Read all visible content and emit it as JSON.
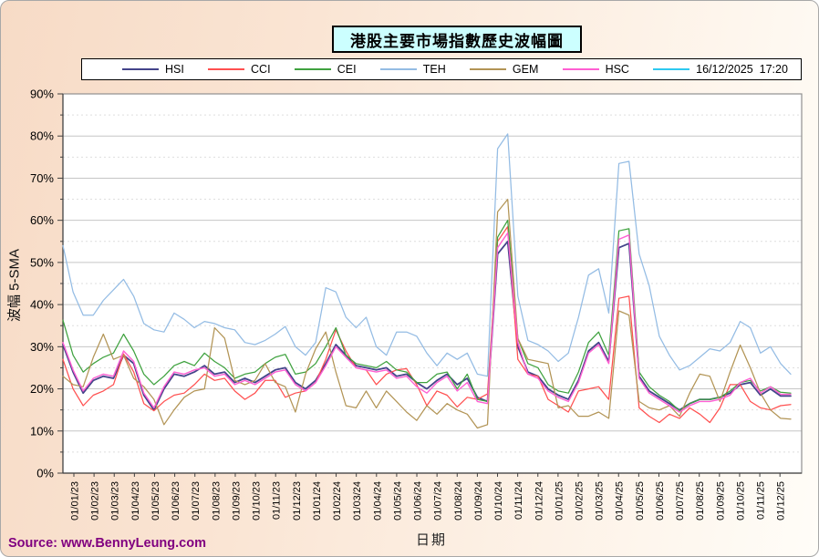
{
  "title": "港股主要市場指數歷史波幅圖",
  "source_text": "Source: www.BennyLeung.com",
  "colors": {
    "title_box_bg": "#CCFFFF",
    "source_text": "#800080",
    "page_bg_left": "#F7DBC6",
    "page_bg_right": "#FFFDF8",
    "plot_bg": "#FFFFFF",
    "grid_major": "#C6C6C6",
    "grid_minor": "#DEDEDE"
  },
  "chart_data": {
    "type": "line",
    "title": "港股主要市場指數歷史波幅圖",
    "xlabel": "日期",
    "ylabel": "波幅 5-SMA",
    "ylim": [
      0,
      90
    ],
    "y_tick_step": 10,
    "y_minor_step": 5,
    "grid": true,
    "legend_position": "top",
    "y_tick_labels": [
      "0%",
      "10%",
      "20%",
      "30%",
      "40%",
      "50%",
      "60%",
      "70%",
      "80%",
      "90%"
    ],
    "x_tick_labels": [
      "01/01/23",
      "01/02/23",
      "01/03/23",
      "01/04/23",
      "01/05/23",
      "01/06/23",
      "01/07/23",
      "01/08/23",
      "01/09/23",
      "01/10/23",
      "01/11/23",
      "01/12/23",
      "01/01/24",
      "01/02/24",
      "01/03/24",
      "01/04/24",
      "01/05/24",
      "01/06/24",
      "01/07/24",
      "01/08/24",
      "01/09/24",
      "01/10/24",
      "01/11/24",
      "01/12/24",
      "01/01/25",
      "01/02/25",
      "01/03/25",
      "01/04/25",
      "01/05/25",
      "01/06/25",
      "01/07/25",
      "01/08/25",
      "01/09/25",
      "01/10/25",
      "01/11/25",
      "01/12/25"
    ],
    "sampling": "values in % estimated at half-month intervals from 15/12/22 to 15/12/25 (73 points per series)",
    "timestamp_legend": {
      "label": "16/12/2025  17:20",
      "color": "#2EC9F0"
    },
    "series": [
      {
        "name": "HSI",
        "color": "#44448A",
        "values": [
          30.5,
          24,
          19,
          22,
          23,
          22.5,
          28,
          26,
          18.5,
          15,
          20,
          23.5,
          23,
          24,
          25.5,
          23.5,
          24,
          21.5,
          22.5,
          21.5,
          23,
          24.5,
          25,
          21.5,
          20,
          22,
          26,
          30.5,
          28,
          25.5,
          25,
          24.5,
          25,
          23,
          23.5,
          21.5,
          20,
          22,
          23.5,
          21,
          22.5,
          18,
          17,
          52,
          55,
          30,
          24,
          23,
          20,
          18.5,
          17.5,
          22,
          29,
          31,
          26.5,
          53.5,
          54.5,
          23,
          19.5,
          18,
          16.5,
          15,
          16.5,
          17.5,
          17.5,
          18,
          19,
          21,
          21.5,
          18.5,
          20,
          18.3,
          18.3
        ]
      },
      {
        "name": "CCI",
        "color": "#FF5050",
        "values": [
          27,
          20,
          16,
          18.5,
          19.5,
          21,
          28.3,
          24,
          16.5,
          14.8,
          17,
          18.5,
          19,
          21,
          23.5,
          22,
          22.5,
          19.5,
          17.5,
          19,
          22,
          22,
          18,
          19,
          19.5,
          21.5,
          27,
          34,
          29,
          25,
          24.5,
          21,
          23.5,
          24.5,
          24.8,
          21,
          16,
          19.5,
          18.5,
          15.7,
          18,
          17.5,
          18.8,
          55,
          58.5,
          27,
          23.5,
          23,
          17.5,
          16,
          14.5,
          19.5,
          20,
          20.5,
          17.5,
          41.5,
          42,
          15.5,
          13.5,
          12,
          14,
          13,
          15.5,
          14,
          12,
          15.5,
          21,
          21,
          17,
          15.5,
          15,
          16,
          16.3
        ]
      },
      {
        "name": "CEI",
        "color": "#3FA23F",
        "values": [
          36.3,
          28,
          24,
          26,
          27.5,
          28.5,
          33,
          29,
          23.5,
          21,
          23,
          25.5,
          26.5,
          25.5,
          28.5,
          26.5,
          25,
          22.5,
          23.5,
          24,
          26,
          27.5,
          28.2,
          23.5,
          24,
          26,
          30,
          34.5,
          28,
          26,
          25.5,
          25,
          26.5,
          24.5,
          24,
          21.5,
          21.5,
          23.5,
          24,
          20,
          23.5,
          17.5,
          17,
          56,
          60,
          32,
          26,
          25,
          21,
          19.5,
          19,
          24,
          31,
          33.5,
          28,
          57.5,
          58,
          24,
          20.5,
          18.5,
          17,
          14.8,
          16.5,
          17.5,
          17.5,
          18,
          19.5,
          21.5,
          22,
          19.5,
          20.5,
          19.2,
          19
        ]
      },
      {
        "name": "TEH",
        "color": "#94BCE4",
        "values": [
          54,
          43,
          37.5,
          37.5,
          41,
          43.5,
          46,
          42,
          35.5,
          34,
          33.5,
          38,
          36.5,
          34.5,
          36,
          35.5,
          34.5,
          34,
          31,
          30.5,
          31.5,
          33,
          34.8,
          30,
          28,
          31,
          44,
          43,
          37,
          34.5,
          37,
          30,
          28,
          33.5,
          33.5,
          32.5,
          28.5,
          25.5,
          28.5,
          27,
          28.5,
          23.5,
          23,
          77,
          80.5,
          42,
          31.5,
          30.5,
          29,
          26.5,
          28.5,
          37,
          47,
          48.5,
          38,
          73.5,
          74,
          52,
          44.5,
          32.5,
          28,
          24.5,
          25.5,
          27.5,
          29.5,
          29,
          31,
          36,
          34.5,
          28.5,
          30,
          26,
          23.5
        ]
      },
      {
        "name": "GEM",
        "color": "#B29455",
        "values": [
          23,
          21,
          20.5,
          27.5,
          33,
          27,
          28,
          22.5,
          20.5,
          17.5,
          11.5,
          15,
          18,
          19.5,
          20,
          34.5,
          32,
          22,
          21,
          22,
          26,
          21.5,
          20.5,
          14.5,
          23.5,
          29.5,
          33.5,
          24,
          16,
          15.5,
          19.5,
          15.5,
          19.5,
          17,
          14.5,
          12.5,
          16,
          14,
          16.5,
          15,
          14,
          10.7,
          11.5,
          62,
          65,
          32,
          27,
          26.5,
          26,
          15.5,
          16,
          13.5,
          13.5,
          14.5,
          13,
          38.5,
          37.5,
          17,
          15.5,
          15,
          16,
          13.5,
          19,
          23.5,
          23,
          17,
          24,
          30.4,
          25,
          19,
          15,
          13,
          12.8
        ]
      },
      {
        "name": "HSC",
        "color": "#FF5FD2",
        "values": [
          31,
          24.5,
          19.5,
          22.5,
          23.5,
          23,
          29,
          26.5,
          19,
          15.5,
          20.5,
          24,
          23.5,
          24.5,
          25,
          23,
          23.5,
          21,
          22,
          21,
          22.5,
          24,
          24.5,
          21,
          19.5,
          21.5,
          25.5,
          30,
          27.5,
          25,
          24.5,
          24,
          24.5,
          22.5,
          23,
          20.5,
          19,
          21.5,
          23,
          19.5,
          21.5,
          17,
          16.5,
          53.5,
          57,
          31,
          23.5,
          22.5,
          19.5,
          18,
          17,
          21.5,
          28.5,
          30.5,
          26,
          55.5,
          56.5,
          22.5,
          19,
          17.5,
          16,
          14.5,
          16,
          17,
          17,
          17.5,
          18.5,
          21.5,
          22.5,
          19,
          20.5,
          18.7,
          18.7
        ]
      }
    ]
  }
}
